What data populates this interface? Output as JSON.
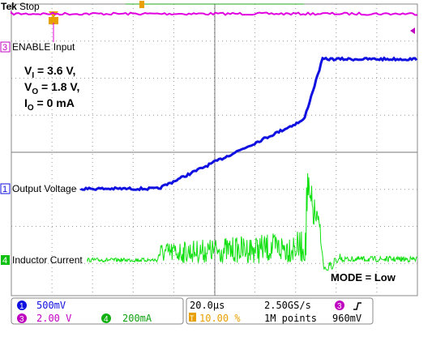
{
  "header": {
    "brand": "Tek",
    "status": "Stop"
  },
  "channels": {
    "enable": {
      "number": "3",
      "label": "ENABLE Input"
    },
    "output": {
      "number": "1",
      "label": "Output Voltage"
    },
    "current": {
      "number": "4",
      "label": "Inductor Current"
    }
  },
  "conditions": [
    {
      "symbol": "V",
      "sub": "I",
      "text": " = 3.6 V,"
    },
    {
      "symbol": "V",
      "sub": "O",
      "text": " = 1.8 V,"
    },
    {
      "symbol": "I",
      "sub": "O",
      "text": " = 0 mA"
    }
  ],
  "mode_note": "MODE = Low",
  "readouts": {
    "ch1": {
      "number": "1",
      "scale": "500mV"
    },
    "ch3": {
      "number": "3",
      "scale": "2.00 V"
    },
    "ch4": {
      "number": "4",
      "scale": "200mA"
    },
    "timebase": "20.0µs",
    "sample_rate": "2.50GS/s",
    "trigger_position": {
      "icon": "T",
      "value": "10.00 %"
    },
    "record_length": "1M points",
    "trigger": {
      "number": "3",
      "level": "960mV"
    }
  }
}
